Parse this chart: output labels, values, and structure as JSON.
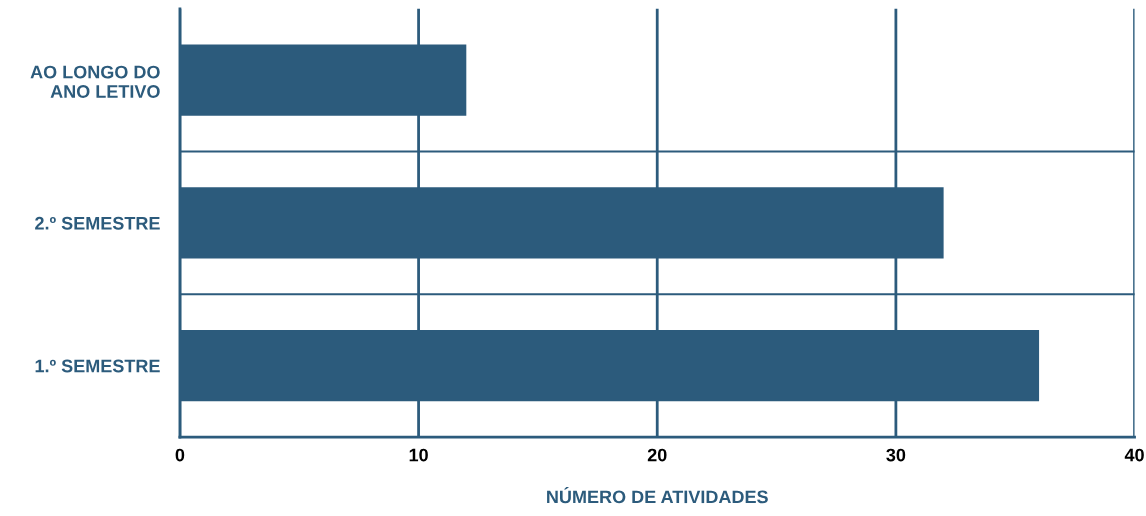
{
  "chart_data": {
    "type": "bar",
    "orientation": "horizontal",
    "categories": [
      "AO LONGO DO\nANO LETIVO",
      "2.º SEMESTRE",
      "1.º SEMESTRE"
    ],
    "values": [
      12,
      32,
      36
    ],
    "color": "#2c5b7c",
    "xlim": [
      0,
      40
    ],
    "xticks": [
      0,
      10,
      20,
      30,
      40
    ],
    "xlabel": "NÚMERO DE ATIVIDADES",
    "grid": true
  }
}
